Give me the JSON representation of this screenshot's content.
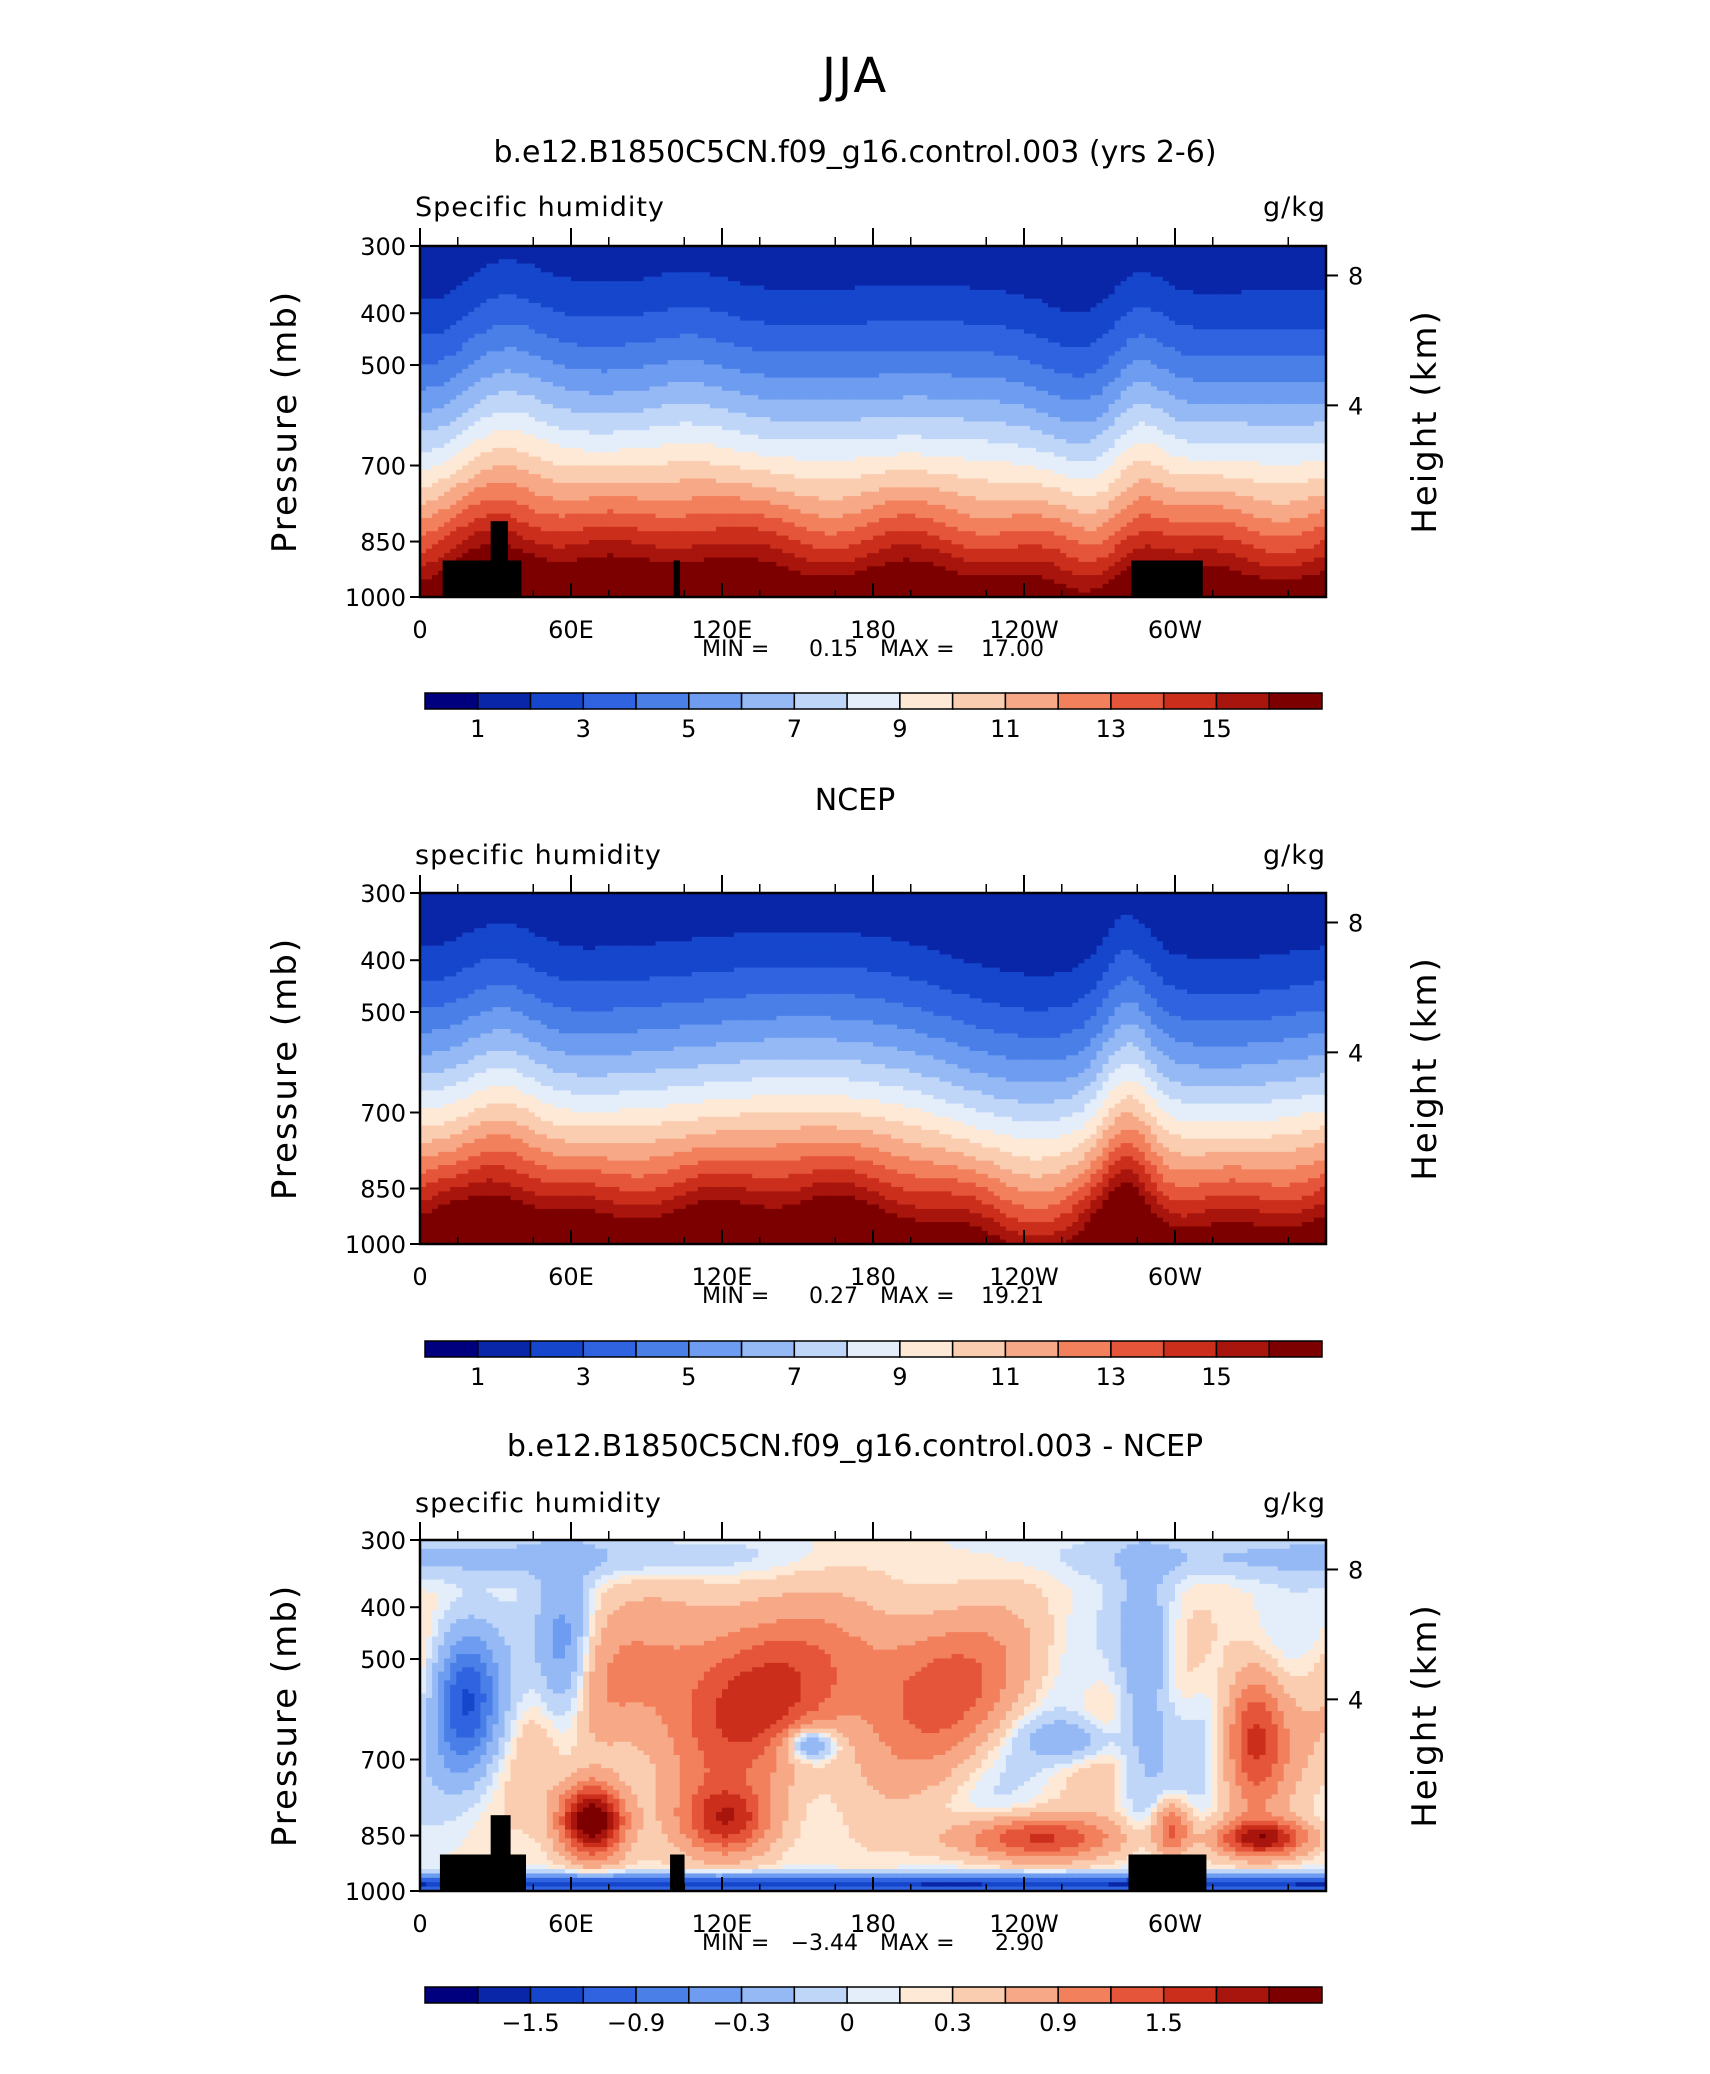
{
  "page_title": "JJA",
  "chart_data": [
    {
      "type": "heatmap",
      "title": "b.e12.B1850C5CN.f09_g16.control.003 (yrs 2-6)",
      "left_label": "Specific humidity",
      "right_label": "g/kg",
      "ylabel": "Pressure (mb)",
      "ylabel_right": "Height (km)",
      "y_ticks": [
        "300",
        "400",
        "500",
        "700",
        "850",
        "1000"
      ],
      "y_right_ticks": [
        "8",
        "4"
      ],
      "x_ticks": [
        "0",
        "60E",
        "120E",
        "180",
        "120W",
        "60W"
      ],
      "min_label": "MIN =",
      "min_value": "0.15",
      "max_label": "MAX =",
      "max_value": "17.00",
      "colorbar_labels": [
        "1",
        "3",
        "5",
        "7",
        "9",
        "11",
        "13",
        "15"
      ],
      "levels": [
        0,
        1,
        2,
        3,
        4,
        5,
        6,
        7,
        8,
        9,
        10,
        11,
        12,
        13,
        14,
        15,
        16
      ]
    },
    {
      "type": "heatmap",
      "title": "NCEP",
      "left_label": "specific humidity",
      "right_label": "g/kg",
      "ylabel": "Pressure (mb)",
      "ylabel_right": "Height (km)",
      "y_ticks": [
        "300",
        "400",
        "500",
        "700",
        "850",
        "1000"
      ],
      "y_right_ticks": [
        "8",
        "4"
      ],
      "x_ticks": [
        "0",
        "60E",
        "120E",
        "180",
        "120W",
        "60W"
      ],
      "min_label": "MIN =",
      "min_value": "0.27",
      "max_label": "MAX =",
      "max_value": "19.21",
      "colorbar_labels": [
        "1",
        "3",
        "5",
        "7",
        "9",
        "11",
        "13",
        "15"
      ],
      "levels": [
        0,
        1,
        2,
        3,
        4,
        5,
        6,
        7,
        8,
        9,
        10,
        11,
        12,
        13,
        14,
        15,
        16
      ]
    },
    {
      "type": "heatmap",
      "title": "b.e12.B1850C5CN.f09_g16.control.003 - NCEP",
      "left_label": "specific humidity",
      "right_label": "g/kg",
      "ylabel": "Pressure (mb)",
      "ylabel_right": "Height (km)",
      "y_ticks": [
        "300",
        "400",
        "500",
        "700",
        "850",
        "1000"
      ],
      "y_right_ticks": [
        "8",
        "4"
      ],
      "x_ticks": [
        "0",
        "60E",
        "120E",
        "180",
        "120W",
        "60W"
      ],
      "min_label": "MIN =",
      "min_value": "−3.44",
      "max_label": "MAX =",
      "max_value": "2.90",
      "colorbar_labels": [
        "−1.5",
        "−0.9",
        "−0.3",
        "0",
        "0.3",
        "0.9",
        "1.5"
      ],
      "levels": [
        -2.1,
        -1.8,
        -1.5,
        -1.2,
        -0.9,
        -0.6,
        -0.3,
        -0.1,
        0,
        0.1,
        0.3,
        0.6,
        0.9,
        1.2,
        1.5,
        1.8,
        2.1
      ]
    }
  ],
  "colors": {
    "palette": [
      "#00007e",
      "#0a26a8",
      "#1546cc",
      "#2f63df",
      "#4a7fe8",
      "#6d9cf0",
      "#95b9f5",
      "#bfd6f8",
      "#e4eefa",
      "#fde9d6",
      "#fbcdb0",
      "#f7a987",
      "#f2805d",
      "#e5553a",
      "#cb2f1c",
      "#a8150c",
      "#7d0000"
    ],
    "land": "#000000",
    "frame": "#000000"
  }
}
